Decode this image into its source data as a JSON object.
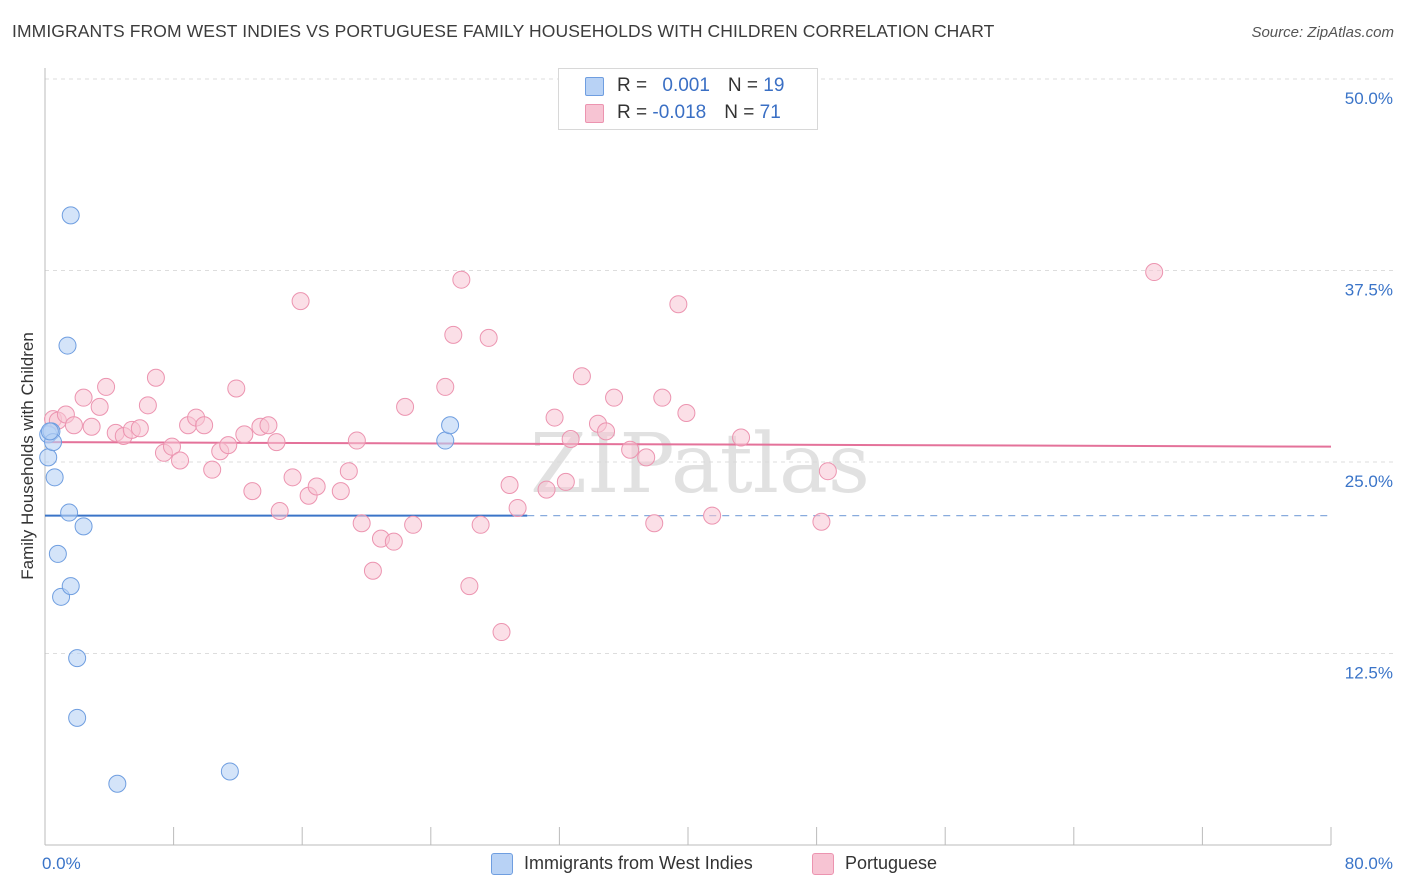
{
  "title": "IMMIGRANTS FROM WEST INDIES VS PORTUGUESE FAMILY HOUSEHOLDS WITH CHILDREN CORRELATION CHART",
  "source": "Source: ZipAtlas.com",
  "colors": {
    "blue_fill": "#b8d2f5",
    "blue_stroke": "#6f9ee0",
    "blue_line": "#3a74c8",
    "pink_fill": "#f7c4d3",
    "pink_stroke": "#ec94b0",
    "pink_line": "#e4729a",
    "tick_label": "#3a74c8",
    "grid": "#dddddd"
  },
  "legend": {
    "series1": {
      "r_label": "R = ",
      "r_value": "0.001",
      "n_label": "N = ",
      "n_value": "19"
    },
    "series2": {
      "r_label": "R = ",
      "r_value": "-0.018",
      "n_label": "N = ",
      "n_value": "71"
    }
  },
  "chart_data": {
    "type": "scatter",
    "title": "IMMIGRANTS FROM WEST INDIES VS PORTUGUESE FAMILY HOUSEHOLDS WITH CHILDREN CORRELATION CHART",
    "xlabel": "",
    "ylabel": "Family Households with Children",
    "xlim": [
      0,
      80
    ],
    "ylim": [
      0,
      50
    ],
    "x_tick_labels": [
      "0.0%",
      "80.0%"
    ],
    "y_ticks": [
      12.5,
      25.0,
      37.5,
      50.0
    ],
    "y_tick_labels": [
      "12.5%",
      "25.0%",
      "37.5%",
      "50.0%"
    ],
    "watermark": "ZIPatlas",
    "series": [
      {
        "name": "Immigrants from West Indies",
        "R": 0.001,
        "N": 19,
        "trend": {
          "x_solid": [
            0,
            30
          ],
          "x_dashed": [
            30,
            80
          ],
          "y": 21.5
        },
        "points": [
          [
            0.2,
            26.8
          ],
          [
            0.2,
            25.3
          ],
          [
            0.4,
            27.0
          ],
          [
            0.5,
            26.3
          ],
          [
            0.6,
            24.0
          ],
          [
            0.8,
            19.0
          ],
          [
            1.0,
            16.2
          ],
          [
            1.4,
            32.6
          ],
          [
            1.5,
            21.7
          ],
          [
            1.6,
            41.1
          ],
          [
            1.6,
            16.9
          ],
          [
            2.0,
            12.2
          ],
          [
            2.0,
            8.3
          ],
          [
            2.4,
            20.8
          ],
          [
            4.5,
            4.0
          ],
          [
            11.5,
            4.8
          ],
          [
            24.9,
            26.4
          ],
          [
            25.2,
            27.4
          ],
          [
            0.3,
            27.0
          ]
        ]
      },
      {
        "name": "Portuguese",
        "R": -0.018,
        "N": 71,
        "trend": {
          "x": [
            0,
            80
          ],
          "y": [
            26.3,
            26.0
          ]
        },
        "points": [
          [
            0.5,
            27.8
          ],
          [
            0.8,
            27.7
          ],
          [
            1.3,
            28.1
          ],
          [
            1.8,
            27.4
          ],
          [
            2.4,
            29.2
          ],
          [
            2.9,
            27.3
          ],
          [
            3.4,
            28.6
          ],
          [
            3.8,
            29.9
          ],
          [
            4.4,
            26.9
          ],
          [
            4.9,
            26.7
          ],
          [
            5.4,
            27.1
          ],
          [
            5.9,
            27.2
          ],
          [
            6.4,
            28.7
          ],
          [
            6.9,
            30.5
          ],
          [
            7.4,
            25.6
          ],
          [
            7.9,
            26.0
          ],
          [
            8.4,
            25.1
          ],
          [
            8.9,
            27.4
          ],
          [
            9.4,
            27.9
          ],
          [
            9.9,
            27.4
          ],
          [
            10.4,
            24.5
          ],
          [
            10.9,
            25.7
          ],
          [
            11.4,
            26.1
          ],
          [
            11.9,
            29.8
          ],
          [
            12.4,
            26.8
          ],
          [
            12.9,
            23.1
          ],
          [
            13.4,
            27.3
          ],
          [
            13.9,
            27.4
          ],
          [
            14.4,
            26.3
          ],
          [
            14.6,
            21.8
          ],
          [
            15.4,
            24.0
          ],
          [
            15.9,
            35.5
          ],
          [
            16.4,
            22.8
          ],
          [
            16.9,
            23.4
          ],
          [
            18.4,
            23.1
          ],
          [
            18.9,
            24.4
          ],
          [
            19.4,
            26.4
          ],
          [
            19.7,
            21.0
          ],
          [
            20.4,
            17.9
          ],
          [
            20.9,
            20.0
          ],
          [
            21.7,
            19.8
          ],
          [
            22.4,
            28.6
          ],
          [
            22.9,
            20.9
          ],
          [
            24.9,
            29.9
          ],
          [
            25.4,
            33.3
          ],
          [
            25.9,
            36.9
          ],
          [
            26.4,
            16.9
          ],
          [
            27.1,
            20.9
          ],
          [
            27.6,
            33.1
          ],
          [
            28.4,
            13.9
          ],
          [
            28.9,
            23.5
          ],
          [
            29.4,
            22.0
          ],
          [
            31.2,
            23.2
          ],
          [
            31.7,
            27.9
          ],
          [
            32.4,
            23.7
          ],
          [
            32.7,
            26.5
          ],
          [
            33.4,
            30.6
          ],
          [
            34.4,
            27.5
          ],
          [
            34.9,
            27.0
          ],
          [
            35.4,
            29.2
          ],
          [
            36.4,
            25.8
          ],
          [
            37.4,
            25.3
          ],
          [
            37.9,
            21.0
          ],
          [
            38.4,
            29.2
          ],
          [
            39.4,
            35.3
          ],
          [
            39.9,
            28.2
          ],
          [
            41.5,
            21.5
          ],
          [
            43.3,
            26.6
          ],
          [
            48.3,
            21.1
          ],
          [
            48.7,
            24.4
          ],
          [
            69.0,
            37.4
          ]
        ]
      }
    ]
  },
  "bottom_legend": [
    {
      "label": "Immigrants from West Indies"
    },
    {
      "label": "Portuguese"
    }
  ]
}
